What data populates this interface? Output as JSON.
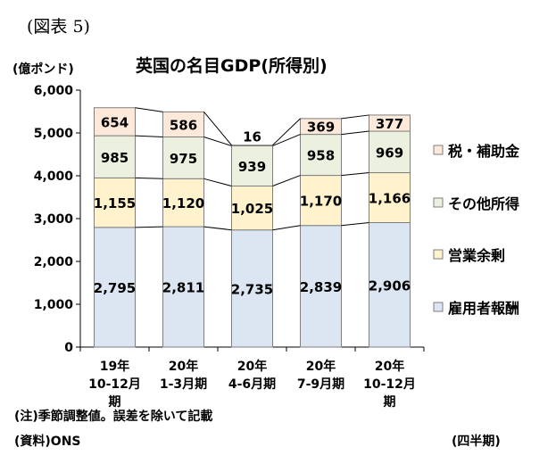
{
  "figure_label": "(図表 5)",
  "unit_label": "(億ポンド)",
  "period_label": "(四半期)",
  "note": "(注)季節調整値。誤差を除いて記載",
  "source": "(資料)ONS",
  "chart_data": {
    "type": "bar",
    "stacked": true,
    "title": "英国の名目GDP(所得別)",
    "categories": [
      [
        "19年",
        "10-12月",
        "期"
      ],
      [
        "20年",
        "1-3月期"
      ],
      [
        "20年",
        "4-6月期"
      ],
      [
        "20年",
        "7-9月期"
      ],
      [
        "20年",
        "10-12月",
        "期"
      ]
    ],
    "series": [
      {
        "name": "雇用者報酬",
        "color": "#dce6f2",
        "values": [
          2795,
          2811,
          2735,
          2839,
          2906
        ],
        "labels": [
          "2,795",
          "2,811",
          "2,735",
          "2,839",
          "2,906"
        ]
      },
      {
        "name": "営業余剰",
        "color": "#fff2cc",
        "values": [
          1155,
          1120,
          1025,
          1170,
          1166
        ],
        "labels": [
          "1,155",
          "1,120",
          "1,025",
          "1,170",
          "1,166"
        ]
      },
      {
        "name": "その他所得",
        "color": "#ebf1de",
        "values": [
          985,
          975,
          939,
          958,
          969
        ],
        "labels": [
          "985",
          "975",
          "939",
          "958",
          "969"
        ]
      },
      {
        "name": "税・補助金",
        "color": "#fde9d9",
        "values": [
          654,
          586,
          16,
          369,
          377
        ],
        "labels": [
          "654",
          "586",
          "16",
          "369",
          "377"
        ]
      }
    ],
    "ylim": [
      0,
      6000
    ],
    "yticks": [
      0,
      1000,
      2000,
      3000,
      4000,
      5000,
      6000
    ],
    "ytick_labels": [
      "0",
      "1,000",
      "2,000",
      "3,000",
      "4,000",
      "5,000",
      "6,000"
    ],
    "grid": false,
    "legend_position": "right",
    "series_lines": true
  }
}
